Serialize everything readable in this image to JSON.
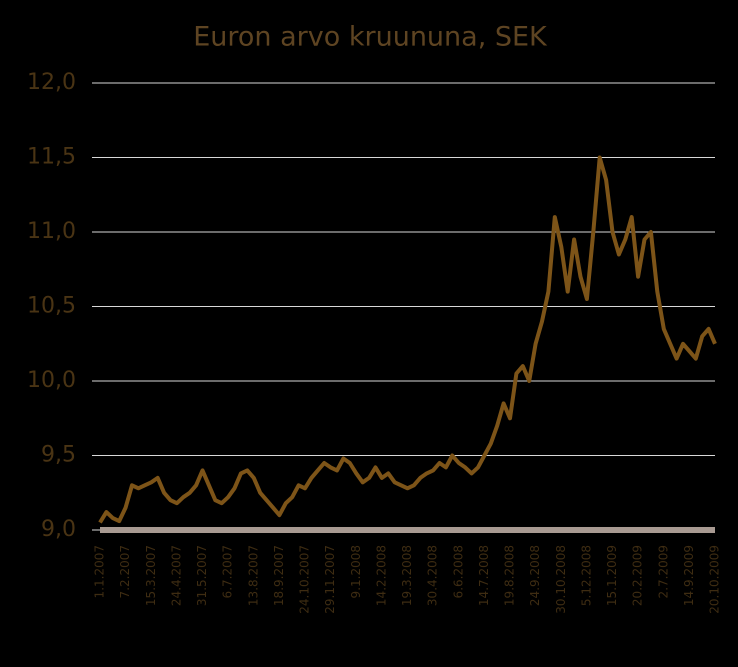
{
  "chart_data": {
    "type": "line",
    "title": "Euron arvo kruununa, SEK",
    "categories": [
      "1.1.2007",
      null,
      null,
      null,
      "7.2.2007",
      null,
      null,
      null,
      "15.3.2007",
      null,
      null,
      null,
      "24.4.2007",
      null,
      null,
      null,
      "31.5.2007",
      null,
      null,
      null,
      "6.7.2007",
      null,
      null,
      null,
      "13.8.2007",
      null,
      null,
      null,
      "18.9.2007",
      null,
      null,
      null,
      "24.10.2007",
      null,
      null,
      null,
      "29.11.2007",
      null,
      null,
      null,
      "9.1.2008",
      null,
      null,
      null,
      "14.2.2008",
      null,
      null,
      null,
      "19.3.2008",
      null,
      null,
      null,
      "30.4.2008",
      null,
      null,
      null,
      "6.6.2008",
      null,
      null,
      null,
      "14.7.2008",
      null,
      null,
      null,
      "19.8.2008",
      null,
      null,
      null,
      "24.9.2008",
      null,
      null,
      null,
      "30.10.2008",
      null,
      null,
      null,
      "5.12.2008",
      null,
      null,
      null,
      "15.1.2009",
      null,
      null,
      null,
      "20.2.2009",
      null,
      null,
      null,
      "2.7.2009",
      null,
      null,
      null,
      "14.9.2009",
      null,
      null,
      null,
      "20.10.2009"
    ],
    "series": [
      {
        "color": "#7d5418",
        "values": [
          9.05,
          9.12,
          9.08,
          9.06,
          9.15,
          9.3,
          9.28,
          9.3,
          9.32,
          9.35,
          9.25,
          9.2,
          9.18,
          9.22,
          9.25,
          9.3,
          9.4,
          9.3,
          9.2,
          9.18,
          9.22,
          9.28,
          9.38,
          9.4,
          9.35,
          9.25,
          9.2,
          9.15,
          9.1,
          9.18,
          9.22,
          9.3,
          9.28,
          9.35,
          9.4,
          9.45,
          9.42,
          9.4,
          9.48,
          9.45,
          9.38,
          9.32,
          9.35,
          9.42,
          9.35,
          9.38,
          9.32,
          9.3,
          9.28,
          9.3,
          9.35,
          9.38,
          9.4,
          9.45,
          9.42,
          9.5,
          9.45,
          9.42,
          9.38,
          9.42,
          9.5,
          9.58,
          9.7,
          9.85,
          9.75,
          10.05,
          10.1,
          10.0,
          10.25,
          10.4,
          10.6,
          11.1,
          10.9,
          10.6,
          10.95,
          10.7,
          10.55,
          11.0,
          11.5,
          11.35,
          11.0,
          10.85,
          10.95,
          11.1,
          10.7,
          10.95,
          11.0,
          10.6,
          10.35,
          10.25,
          10.15,
          10.25,
          10.2,
          10.15,
          10.3,
          10.35,
          10.25
        ]
      }
    ],
    "ylim": [
      9,
      12
    ],
    "yticks": [
      {
        "value": 9,
        "label": "9,0"
      },
      {
        "value": 9.5,
        "label": "9,5"
      },
      {
        "value": 10,
        "label": "10,0"
      },
      {
        "value": 10.5,
        "label": "10,5"
      },
      {
        "value": 11,
        "label": "11,0"
      },
      {
        "value": 11.5,
        "label": "11,5"
      },
      {
        "value": 12,
        "label": "12,0"
      }
    ],
    "grid": true
  }
}
